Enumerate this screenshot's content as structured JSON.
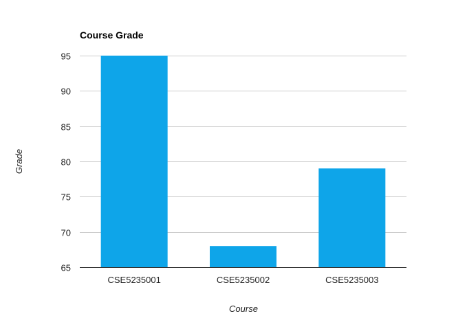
{
  "chart_data": {
    "type": "bar",
    "title": "Course Grade",
    "xlabel": "Course",
    "ylabel": "Grade",
    "categories": [
      "CSE5235001",
      "CSE5235002",
      "CSE5235003"
    ],
    "values": [
      95,
      68,
      79
    ],
    "ylim": [
      65,
      95
    ],
    "yticks": [
      65,
      70,
      75,
      80,
      85,
      90,
      95
    ],
    "grid": true,
    "legend": "none",
    "bar_color": "#0ea5e9"
  }
}
